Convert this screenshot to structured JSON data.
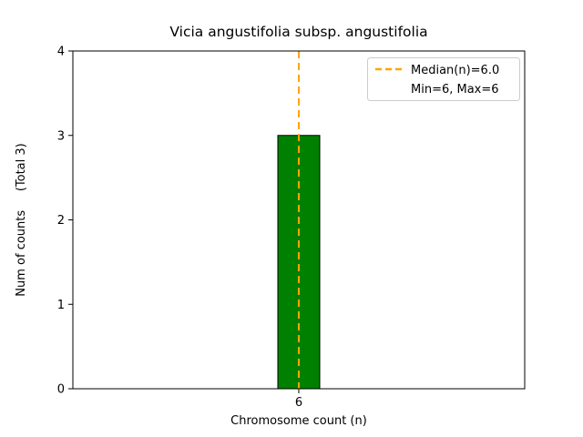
{
  "chart_data": {
    "type": "bar",
    "title": "Vicia angustifolia subsp. angustifolia",
    "xlabel": "Chromosome count (n)",
    "ylabel": "Num of counts     (Total 3)",
    "categories": [
      "6"
    ],
    "values": [
      3
    ],
    "ylim": [
      0,
      4
    ],
    "yticks": [
      0,
      1,
      2,
      3,
      4
    ],
    "grid": false,
    "colors": {
      "bar_fill": "#008000",
      "bar_edge": "#000000",
      "median_line": "#FFA500",
      "axes": "#000000",
      "legend_border": "#cccccc",
      "background": "#ffffff"
    },
    "median_line": {
      "value": 6.0,
      "style": "dashed"
    },
    "legend": {
      "position": "upper right",
      "entries": [
        {
          "label": "Median(n)=6.0",
          "marker": "dashed-line"
        },
        {
          "label": "Min=6, Max=6",
          "marker": "none"
        }
      ]
    }
  }
}
